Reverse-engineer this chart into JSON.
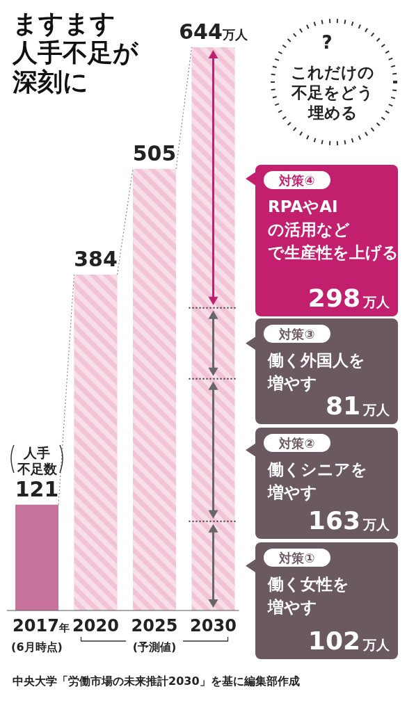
{
  "chart_data": {
    "type": "bar",
    "title": "ますます人手不足が深刻に",
    "categories": [
      "2017年",
      "2020",
      "2025",
      "2030"
    ],
    "values": [
      121,
      384,
      505,
      644
    ],
    "colors": [
      "#c8739c",
      "#f1c3d6",
      "#f1c3d6",
      "#f1c3d6"
    ],
    "data_labels": true,
    "value_labels": [
      "121",
      "384",
      "505",
      "644万人"
    ],
    "ref_lines": [
      {
        "axis": "y",
        "value": 102,
        "label": null,
        "line_style": "dotted"
      },
      {
        "axis": "y",
        "value": 265,
        "label": null,
        "line_style": "dotted"
      },
      {
        "axis": "y",
        "value": 346,
        "label": null,
        "line_style": "dotted"
      }
    ],
    "annotations": [
      "人手不足数",
      "(6月時点)",
      "(予測値)",
      "?",
      "これだけの不足をどう埋める",
      "対策④",
      "RPAやAIの活用などで生産性を上げる",
      "298万人",
      "対策③",
      "働く外国人を増やす",
      "81万人",
      "対策②",
      "働くシニアを増やす",
      "163万人",
      "対策①",
      "働く女性を増やす",
      "102万人",
      "中央大学「労働市場の未来推計2030」を基に編集部作成"
    ]
  }
}
